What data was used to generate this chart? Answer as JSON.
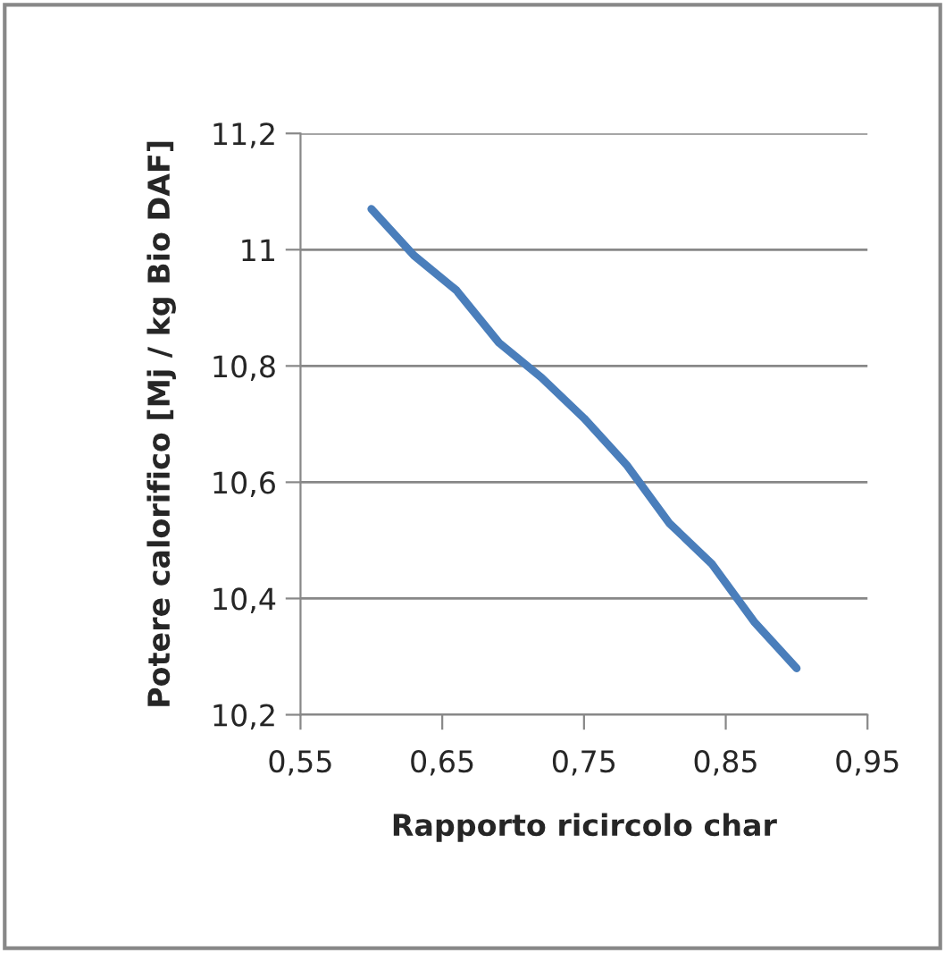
{
  "chart_data": {
    "type": "line",
    "xlabel": "Rapporto ricircolo char",
    "ylabel": "Potere calorifico [Mj / kg Bio DAF]",
    "x": [
      0.6,
      0.63,
      0.66,
      0.69,
      0.72,
      0.75,
      0.78,
      0.81,
      0.84,
      0.87,
      0.9
    ],
    "series": [
      {
        "color": "#4a7ebb",
        "values": [
          11.07,
          10.99,
          10.93,
          10.84,
          10.78,
          10.71,
          10.63,
          10.53,
          10.46,
          10.36,
          10.28
        ]
      }
    ],
    "xlim": [
      0.55,
      0.95
    ],
    "xticks": [
      {
        "value": 0.55,
        "label": "0,55"
      },
      {
        "value": 0.65,
        "label": "0,65"
      },
      {
        "value": 0.75,
        "label": "0,75"
      },
      {
        "value": 0.85,
        "label": "0,85"
      },
      {
        "value": 0.95,
        "label": "0,95"
      }
    ],
    "ylim": [
      10.2,
      11.2
    ],
    "yticks": [
      {
        "value": 10.2,
        "label": "10,2"
      },
      {
        "value": 10.4,
        "label": "10,4"
      },
      {
        "value": 10.6,
        "label": "10,6"
      },
      {
        "value": 10.8,
        "label": "10,8"
      },
      {
        "value": 11,
        "label": "11"
      },
      {
        "value": 11.2,
        "label": "11,2"
      }
    ],
    "grid": "y",
    "marker": "none",
    "line_style": "solid",
    "legend": false
  }
}
